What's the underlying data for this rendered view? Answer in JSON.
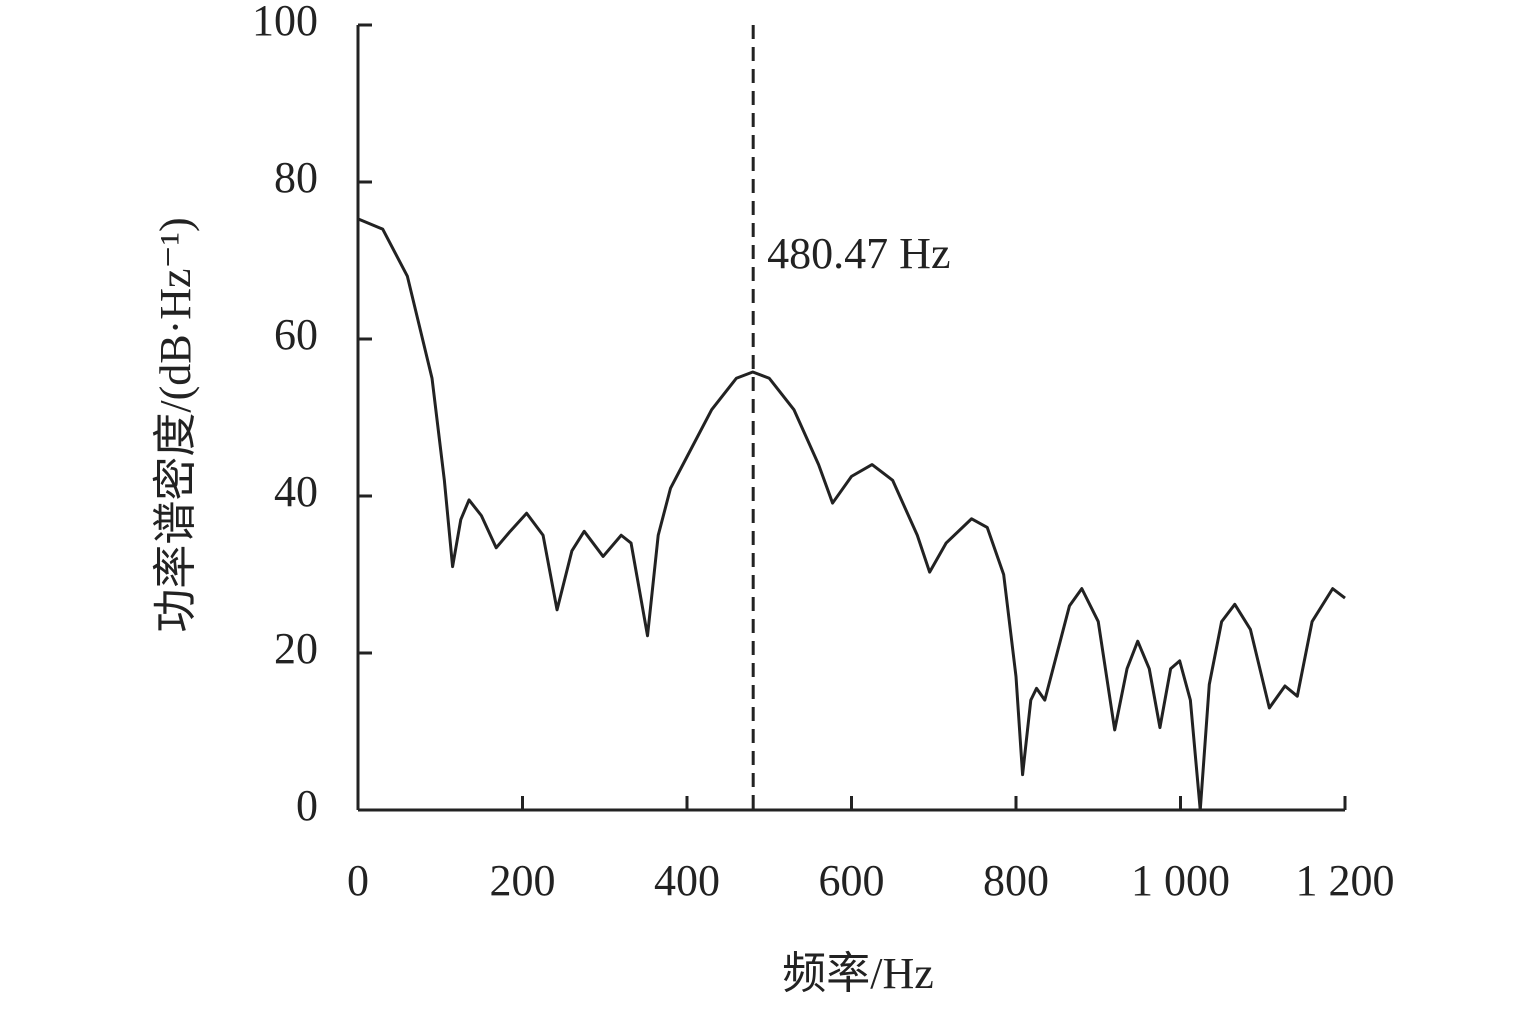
{
  "chart_data": {
    "type": "line",
    "x_label": "频率/Hz",
    "y_label": "功率谱密度/(dB·Hz⁻¹)",
    "x": [
      0,
      30,
      60,
      90,
      105,
      115,
      125,
      135,
      150,
      168,
      185,
      205,
      225,
      242,
      260,
      275,
      298,
      320,
      332,
      352,
      365,
      380,
      400,
      430,
      460,
      480,
      500,
      530,
      560,
      577,
      600,
      625,
      650,
      680,
      695,
      715,
      746,
      765,
      785,
      800,
      808,
      818,
      825,
      835,
      850,
      865,
      880,
      900,
      920,
      935,
      948,
      962,
      975,
      988,
      999,
      1012,
      1024,
      1035,
      1050,
      1066,
      1085,
      1108,
      1127,
      1142,
      1160,
      1185,
      1200
    ],
    "values": [
      75.3,
      74,
      68,
      55,
      42,
      31,
      37,
      39.5,
      37.5,
      33.4,
      35.5,
      37.8,
      35,
      25.5,
      33,
      35.5,
      32.3,
      35,
      34,
      22.2,
      35,
      41,
      45,
      51,
      55,
      55.8,
      55,
      51,
      44,
      39.1,
      42.5,
      44,
      42,
      35,
      30.3,
      34,
      37.1,
      36,
      30,
      17,
      4.5,
      14,
      15.5,
      14,
      20,
      26,
      28.2,
      24,
      10.2,
      18,
      21.5,
      18,
      10.5,
      18,
      19,
      14,
      0,
      16,
      24,
      26.2,
      23,
      13,
      15.8,
      14.5,
      24,
      28.2,
      27
    ],
    "color": "#222222",
    "xlim": [
      0,
      1200
    ],
    "xticks": [
      0,
      200,
      400,
      600,
      800,
      {
        "value": 1000,
        "label": "1 000"
      },
      {
        "value": 1200,
        "label": "1 200"
      }
    ],
    "ylim": [
      0,
      100
    ],
    "yticks": [
      0,
      20,
      40,
      60,
      80,
      100
    ],
    "annotation": {
      "x": 480.47,
      "label": "480.47 Hz"
    }
  }
}
